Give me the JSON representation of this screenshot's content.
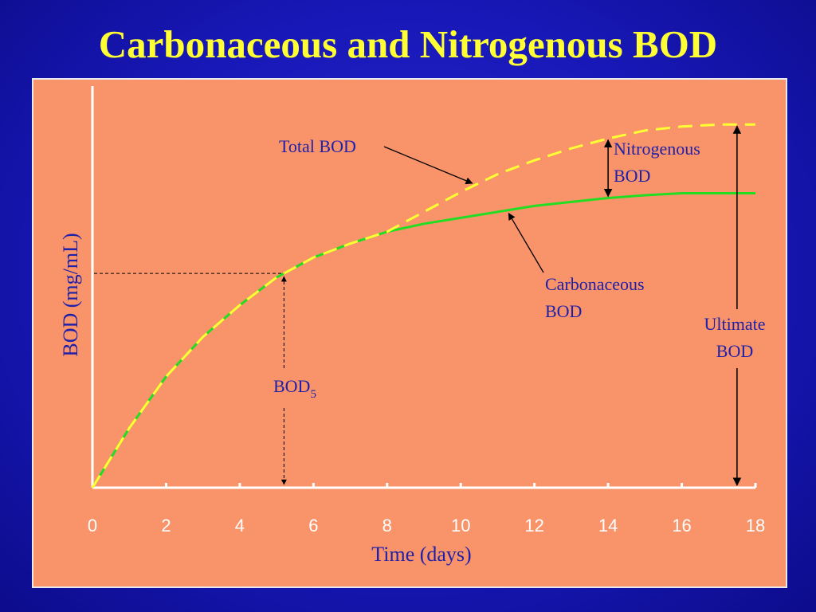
{
  "slide": {
    "title": "Carbonaceous and Nitrogenous BOD"
  },
  "colors": {
    "background": "#1a1ac0",
    "title": "#ffff33",
    "panel": "#f9946a",
    "total_bod": "#ffff33",
    "carbonaceous_bod": "#22dd22",
    "label_text": "#2020a8",
    "axis": "#ffffff"
  },
  "chart_data": {
    "type": "line",
    "title": "",
    "xlabel": "Time (days)",
    "ylabel": "BOD (mg/mL)",
    "xlim": [
      0,
      18
    ],
    "ylim": [
      0,
      1
    ],
    "x_ticks": [
      0,
      2,
      4,
      6,
      8,
      10,
      12,
      14,
      16,
      18
    ],
    "grid": false,
    "y_ticks_shown": false,
    "series": [
      {
        "name": "Total BOD",
        "style": "dashed",
        "color": "#ffff33",
        "x": [
          0,
          1,
          2,
          3,
          4,
          5,
          6,
          7,
          8,
          9,
          10,
          11,
          12,
          13,
          14,
          15,
          16,
          17,
          18
        ],
        "y": [
          0,
          0.15,
          0.28,
          0.38,
          0.46,
          0.53,
          0.58,
          0.615,
          0.645,
          0.695,
          0.745,
          0.79,
          0.825,
          0.855,
          0.88,
          0.9,
          0.91,
          0.915,
          0.915
        ]
      },
      {
        "name": "Carbonaceous BOD",
        "style": "solid",
        "color": "#22dd22",
        "x": [
          0,
          1,
          2,
          3,
          4,
          5,
          6,
          7,
          8,
          9,
          10,
          11,
          12,
          13,
          14,
          15,
          16,
          17,
          18
        ],
        "y": [
          0,
          0.15,
          0.28,
          0.38,
          0.46,
          0.53,
          0.58,
          0.615,
          0.645,
          0.665,
          0.68,
          0.695,
          0.71,
          0.72,
          0.73,
          0.737,
          0.742,
          0.742,
          0.742
        ]
      }
    ],
    "annotations": {
      "total_bod": "Total BOD",
      "nitrogenous_line1": "Nitrogenous",
      "nitrogenous_line2": "BOD",
      "carbonaceous_line1": "Carbonaceous",
      "carbonaceous_line2": "BOD",
      "ultimate_line1": "Ultimate",
      "ultimate_line2": "BOD",
      "bod5_main": "BOD",
      "bod5_sub": "5"
    },
    "bod5_day": 5.2,
    "nitrogenous_day": 14,
    "ultimate_day": 17.5
  }
}
